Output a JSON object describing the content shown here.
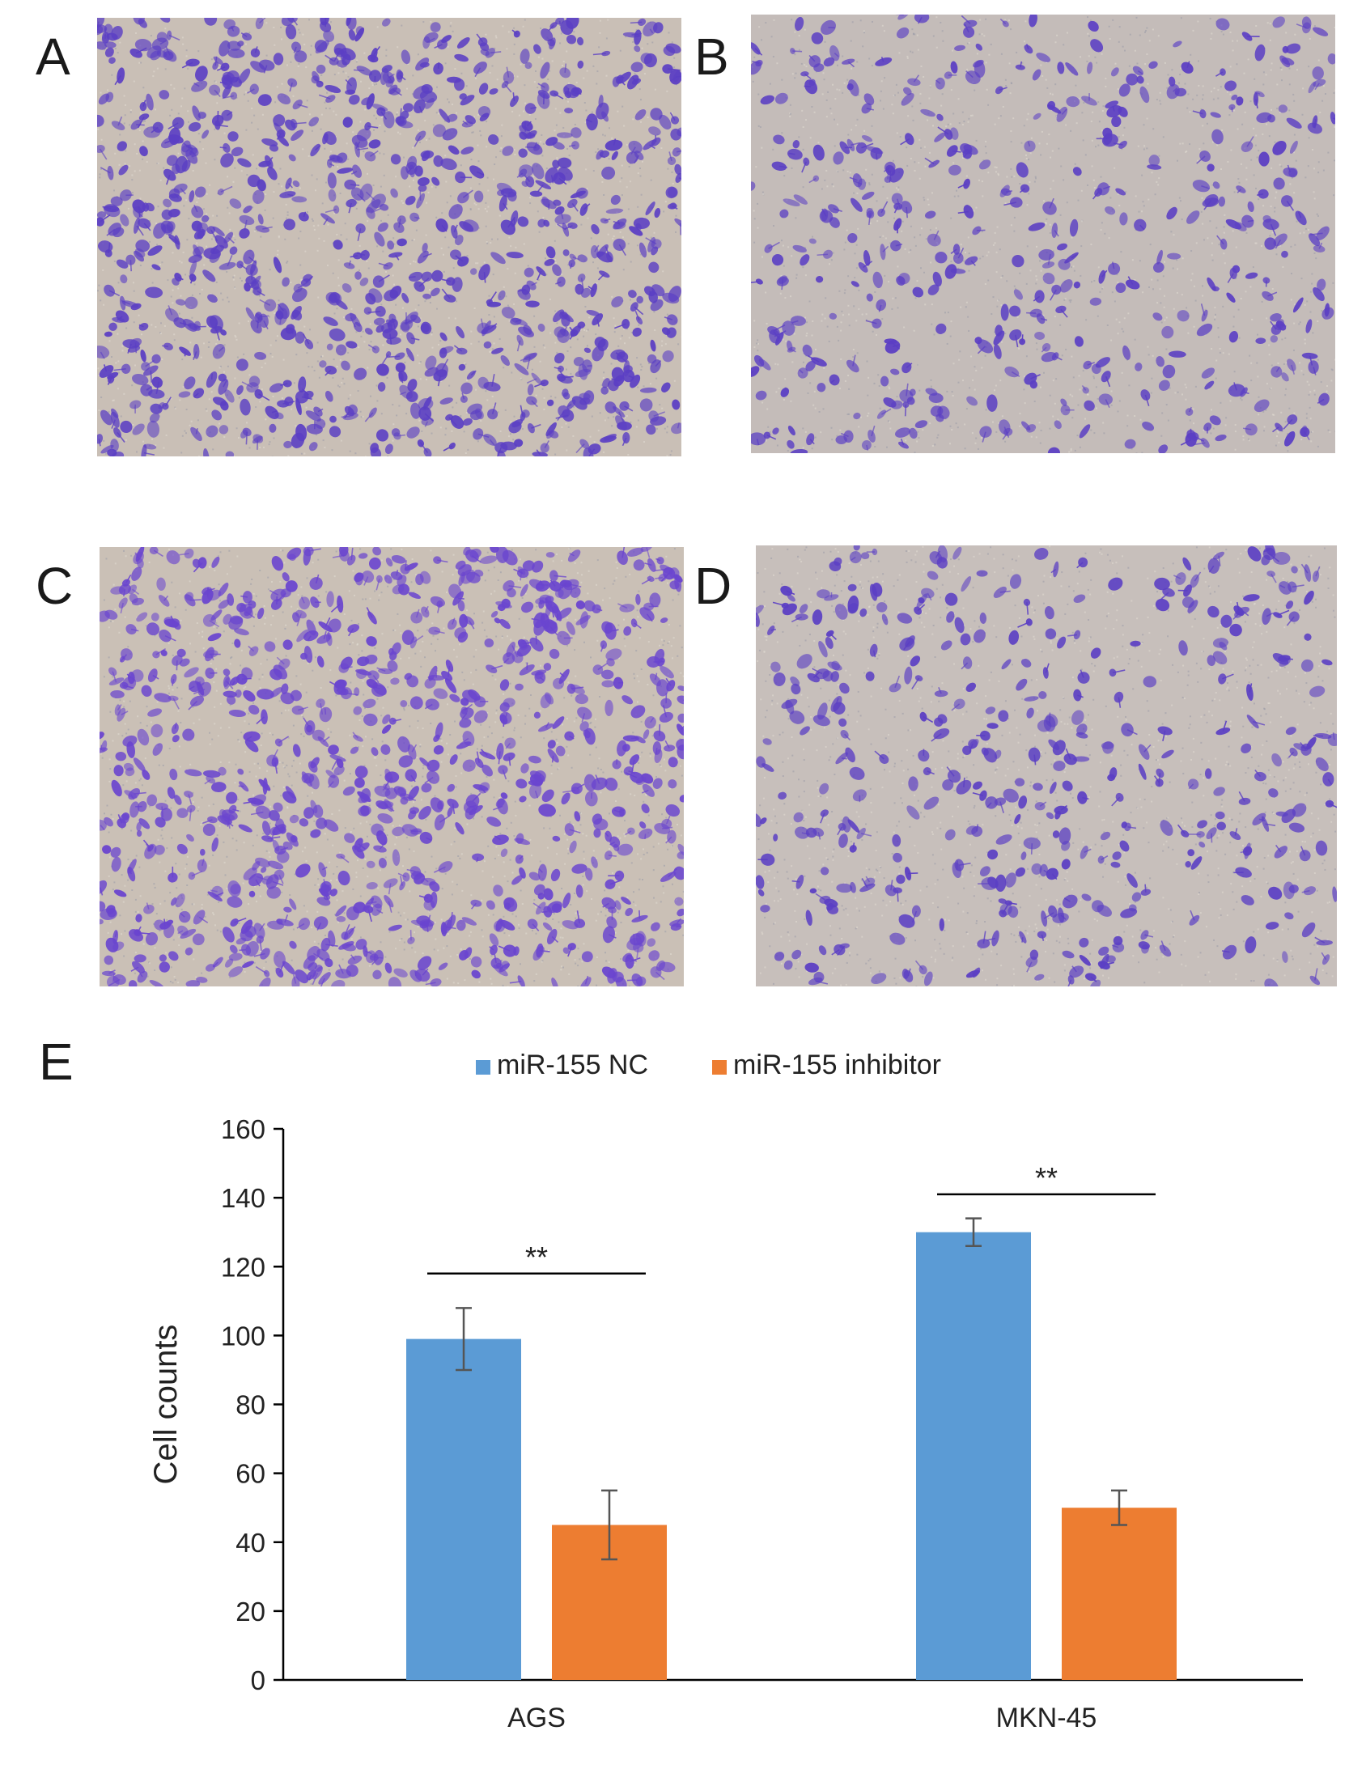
{
  "panels": [
    {
      "letter": "A",
      "density": "high",
      "stain_color": "#5b3fc4",
      "background_color": "#c9bfb6"
    },
    {
      "letter": "B",
      "density": "low",
      "stain_color": "#5b3fc4",
      "background_color": "#c4bcb9"
    },
    {
      "letter": "C",
      "density": "high",
      "stain_color": "#6a45cf",
      "background_color": "#cac0b6"
    },
    {
      "letter": "D",
      "density": "low",
      "stain_color": "#5b3fc4",
      "background_color": "#c7bfbb"
    }
  ],
  "chart_panel_letter": "E",
  "chart_data": {
    "type": "bar",
    "categories": [
      "AGS",
      "MKN-45"
    ],
    "series": [
      {
        "name": "miR-155 NC",
        "color": "#5b9bd5",
        "values": [
          99,
          130
        ],
        "errors": [
          9,
          4
        ]
      },
      {
        "name": "miR-155 inhibitor",
        "color": "#ed7d31",
        "values": [
          45,
          50
        ],
        "errors": [
          10,
          5
        ]
      }
    ],
    "ylabel": "Cell counts",
    "xlabel": "",
    "ylim": [
      0,
      160
    ],
    "yticks": [
      0,
      20,
      40,
      60,
      80,
      100,
      120,
      140,
      160
    ],
    "legend_position": "top-center",
    "grid": false,
    "significance": [
      {
        "category": "AGS",
        "label": "**",
        "level": 118
      },
      {
        "category": "MKN-45",
        "label": "**",
        "level": 141
      }
    ]
  }
}
